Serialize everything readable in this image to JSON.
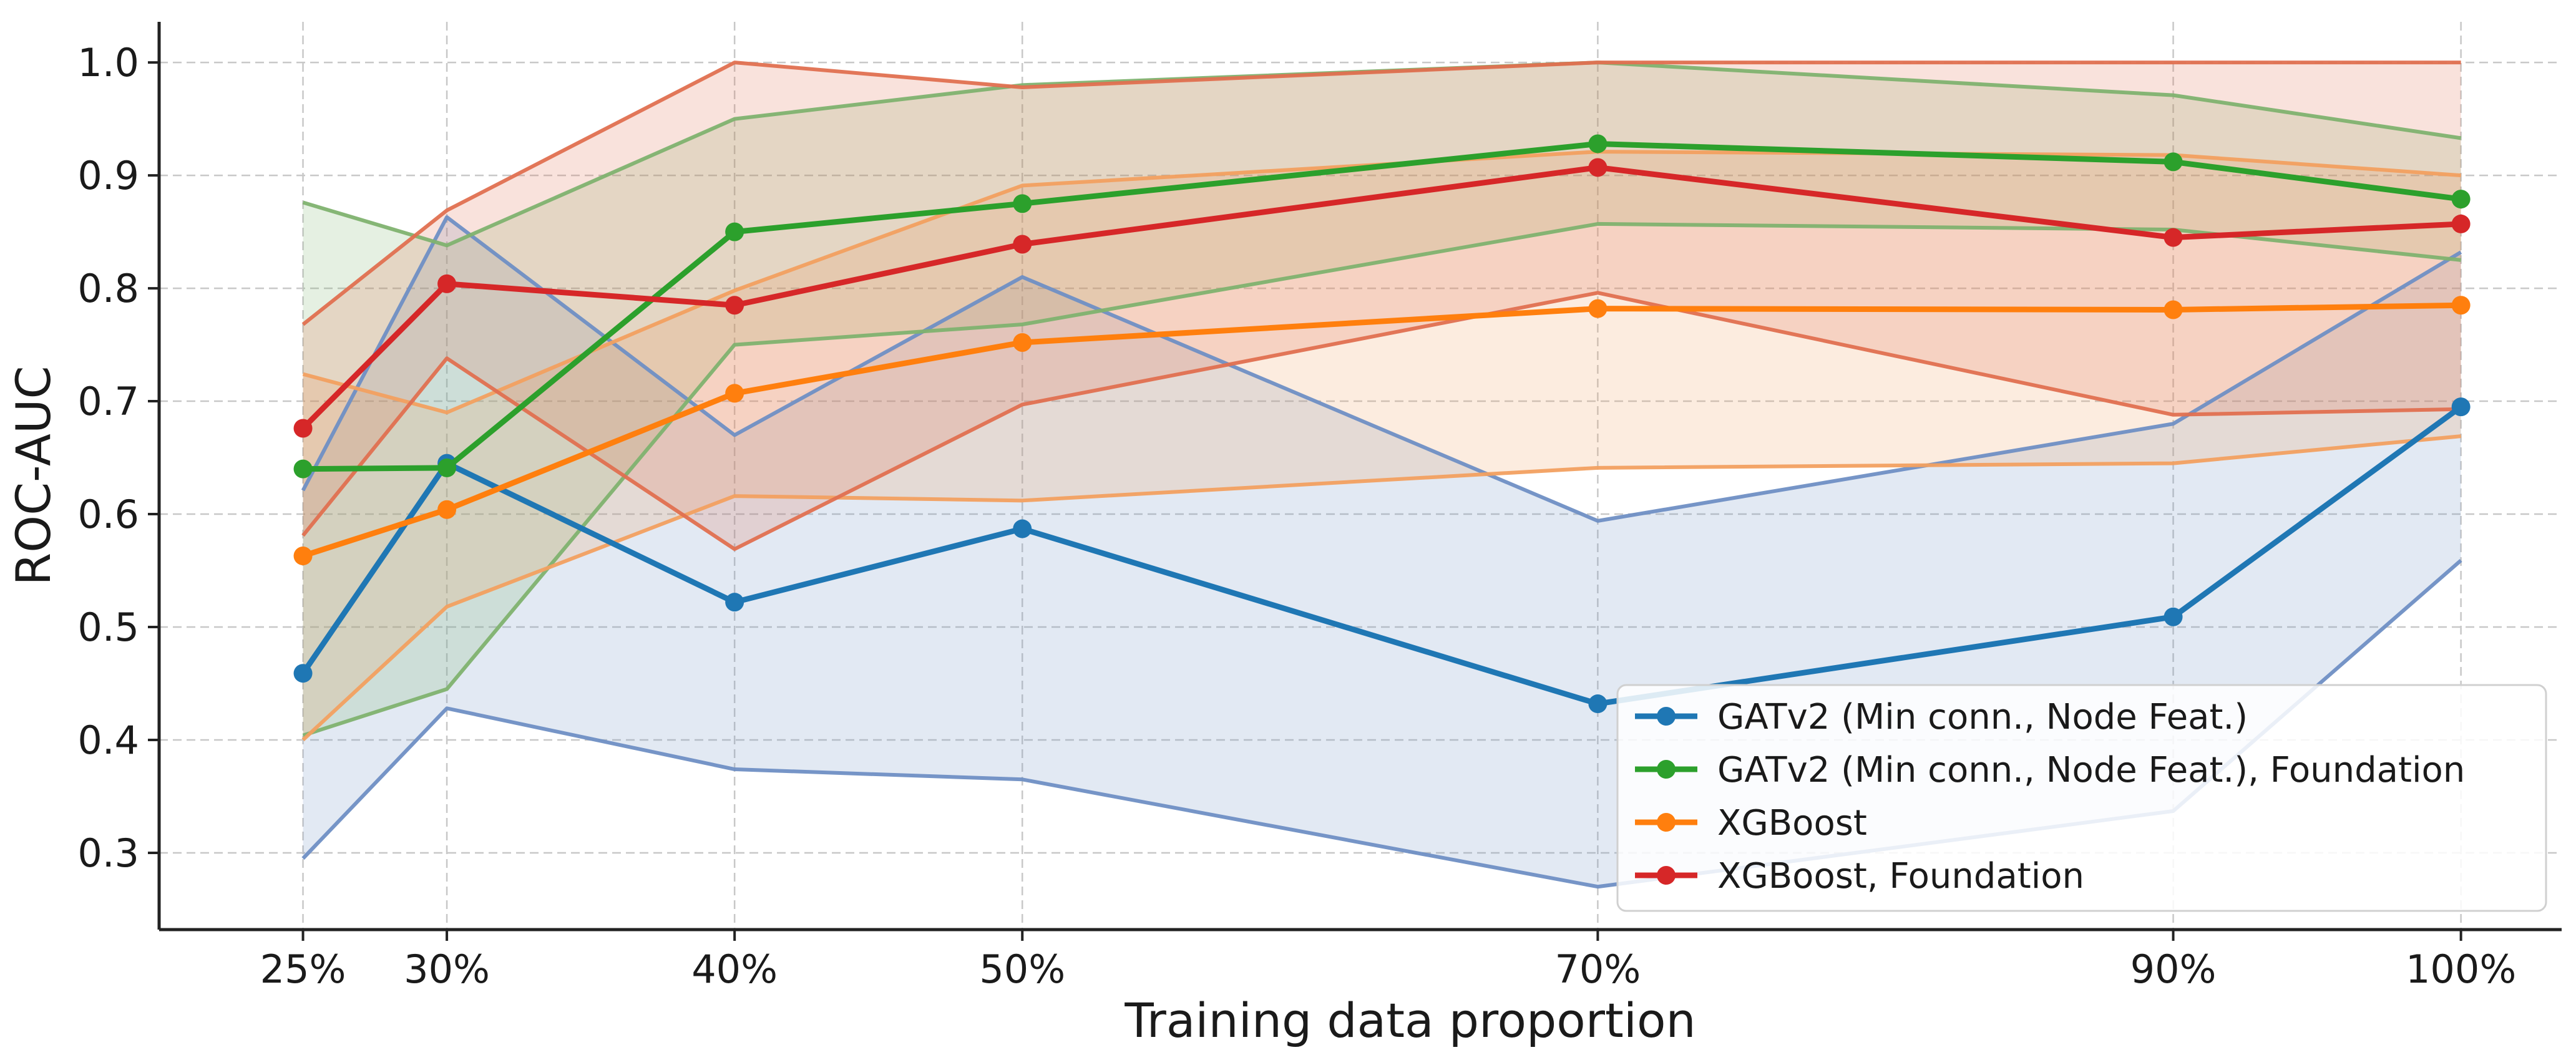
{
  "chart_data": {
    "type": "line",
    "title": "",
    "xlabel": "Training data proportion",
    "ylabel": "ROC-AUC",
    "x": [
      25,
      30,
      40,
      50,
      70,
      90,
      100
    ],
    "x_tick_labels": [
      "25%",
      "30%",
      "40%",
      "50%",
      "70%",
      "90%",
      "100%"
    ],
    "xlim": [
      20,
      103.5
    ],
    "ylim": [
      0.232,
      1.036
    ],
    "y_ticks": [
      0.3,
      0.4,
      0.5,
      0.6,
      0.7,
      0.8,
      0.9,
      1.0
    ],
    "y_tick_labels": [
      "0.3",
      "0.4",
      "0.5",
      "0.6",
      "0.7",
      "0.8",
      "0.9",
      "1.0"
    ],
    "grid": true,
    "legend_position": "lower-right",
    "series": [
      {
        "name": "GATv2 (Min conn., Node Feat.)",
        "color": "#1f77b4",
        "band_color": "#6f8fc4",
        "values": [
          0.459,
          0.645,
          0.522,
          0.587,
          0.432,
          0.509,
          0.695
        ],
        "lower": [
          0.295,
          0.428,
          0.374,
          0.365,
          0.27,
          0.337,
          0.559
        ],
        "upper": [
          0.621,
          0.863,
          0.67,
          0.81,
          0.594,
          0.68,
          0.832
        ]
      },
      {
        "name": "GATv2 (Min conn., Node Feat.), Foundation",
        "color": "#2ca02c",
        "band_color": "#7fb26f",
        "values": [
          0.64,
          0.641,
          0.85,
          0.875,
          0.928,
          0.912,
          0.879
        ],
        "lower": [
          0.404,
          0.445,
          0.75,
          0.768,
          0.857,
          0.852,
          0.825
        ],
        "upper": [
          0.876,
          0.838,
          0.95,
          0.98,
          1.0,
          0.971,
          0.933
        ]
      },
      {
        "name": "XGBoost",
        "color": "#ff7f0e",
        "band_color": "#f2a060",
        "values": [
          0.563,
          0.604,
          0.707,
          0.752,
          0.782,
          0.781,
          0.785
        ],
        "lower": [
          0.4,
          0.518,
          0.616,
          0.612,
          0.641,
          0.645,
          0.669
        ],
        "upper": [
          0.724,
          0.69,
          0.798,
          0.891,
          0.921,
          0.918,
          0.9
        ]
      },
      {
        "name": "XGBoost, Foundation",
        "color": "#d62728",
        "band_color": "#e07050",
        "values": [
          0.676,
          0.804,
          0.785,
          0.839,
          0.907,
          0.845,
          0.857
        ],
        "lower": [
          0.581,
          0.738,
          0.569,
          0.697,
          0.796,
          0.688,
          0.693
        ],
        "upper": [
          0.768,
          0.869,
          1.0,
          0.978,
          1.0,
          1.0,
          1.0
        ]
      }
    ]
  }
}
